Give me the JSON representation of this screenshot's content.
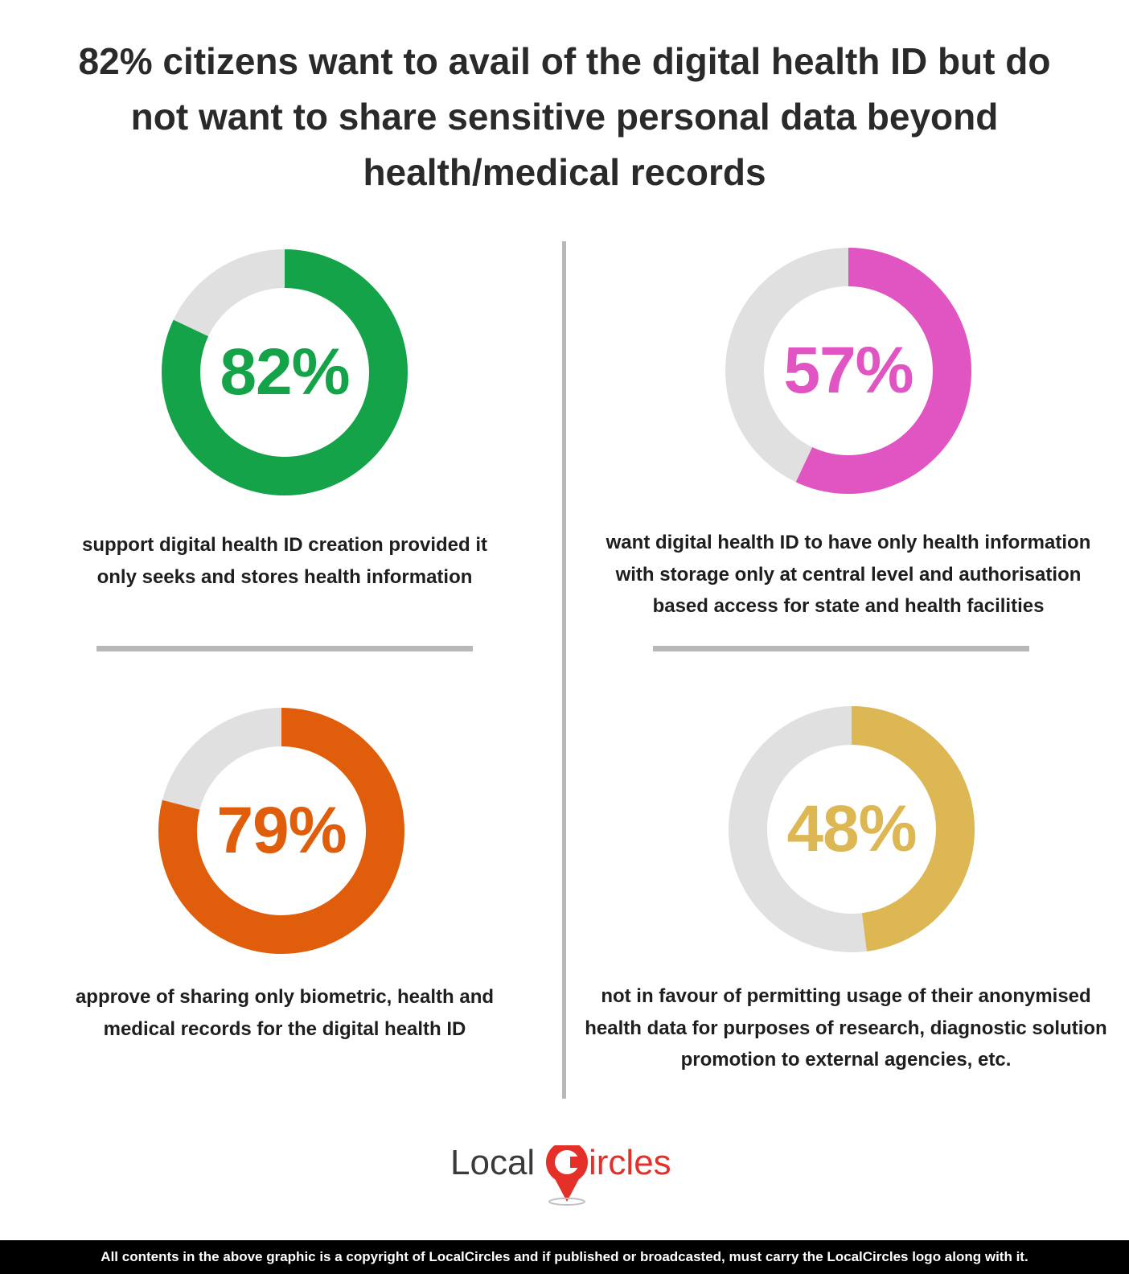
{
  "title": "82% citizens want to avail of the digital health ID but do not want to share sensitive personal data beyond health/medical records",
  "chart_data": [
    {
      "type": "pie",
      "subtype": "donut",
      "value_percent": 82,
      "label": "82%",
      "color": "#15a34a",
      "remainder_color": "#e0e0e0",
      "description": "support digital health ID creation provided it only seeks and stores health information"
    },
    {
      "type": "pie",
      "subtype": "donut",
      "value_percent": 57,
      "label": "57%",
      "color": "#e055c1",
      "remainder_color": "#e0e0e0",
      "description": "want digital health ID to have only health information with storage only at central level and authorisation based access for state and health facilities"
    },
    {
      "type": "pie",
      "subtype": "donut",
      "value_percent": 79,
      "label": "79%",
      "color": "#e05e0b",
      "remainder_color": "#e0e0e0",
      "description": "approve of sharing only biometric, health and medical records for the digital health ID"
    },
    {
      "type": "pie",
      "subtype": "donut",
      "value_percent": 48,
      "label": "48%",
      "color": "#ddb753",
      "remainder_color": "#e0e0e0",
      "description": "not in favour of permitting usage of their anonymised health data for purposes of research, diagnostic solution promotion to external agencies, etc."
    }
  ],
  "logo": {
    "text_left": "Local",
    "text_right": "ircles",
    "color_left": "#3a3a3a",
    "color_right": "#e5302a"
  },
  "footer": "All contents in the above graphic is a copyright of LocalCircles and if published or broadcasted, must carry the LocalCircles logo along with it."
}
